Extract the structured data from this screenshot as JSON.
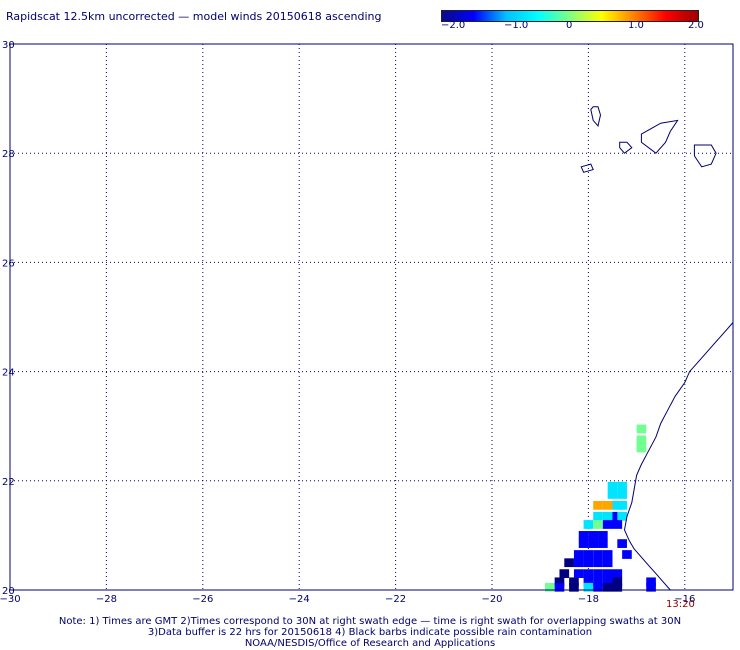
{
  "title": "Rapidscat 12.5km uncorrected — model winds 20150618 ascending",
  "colorbar": {
    "labels": [
      "−2.0",
      "−1.0",
      "0",
      "1.0",
      "2.0"
    ],
    "stops": [
      "#0a0a8c",
      "#0000ff",
      "#00c0ff",
      "#00ffff",
      "#80ff80",
      "#ffff00",
      "#ff8000",
      "#ff0000",
      "#a00000"
    ]
  },
  "axes": {
    "x_ticks": [
      "−30",
      "−28",
      "−26",
      "−24",
      "−22",
      "−20",
      "−18",
      "−16"
    ],
    "y_ticks": [
      "30",
      "28",
      "26",
      "24",
      "22",
      "20"
    ],
    "xlim": [
      -30,
      -15
    ],
    "ylim": [
      20,
      30
    ]
  },
  "timestamp": "13:20",
  "notes": [
    "Note: 1) Times are GMT 2)Times correspond to 30N at right swath edge — time is right swath for overlapping swaths at 30N",
    "3)Data buffer is 22 hrs for 20150618 4) Black barbs indicate possible rain contamination",
    "NOAA/NESDIS/Office of Research and Applications"
  ],
  "colors": {
    "frame": "#00006e",
    "coast": "#00006e",
    "grid": "#00006e",
    "dark_blue": "#000080",
    "blue": "#0000ff",
    "cyan": "#00e5ff",
    "green": "#70ff90",
    "orange": "#ffa500"
  },
  "cells": [
    {
      "lon": -16.9,
      "lat": 22.95,
      "c": "green"
    },
    {
      "lon": -16.9,
      "lat": 22.75,
      "c": "green"
    },
    {
      "lon": -16.9,
      "lat": 22.6,
      "c": "green"
    },
    {
      "lon": -17.5,
      "lat": 21.9,
      "c": "cyan"
    },
    {
      "lon": -17.3,
      "lat": 21.9,
      "c": "cyan"
    },
    {
      "lon": -17.5,
      "lat": 21.75,
      "c": "cyan"
    },
    {
      "lon": -17.3,
      "lat": 21.75,
      "c": "cyan"
    },
    {
      "lon": -17.8,
      "lat": 21.55,
      "c": "orange"
    },
    {
      "lon": -17.6,
      "lat": 21.55,
      "c": "orange"
    },
    {
      "lon": -17.4,
      "lat": 21.55,
      "c": "cyan"
    },
    {
      "lon": -17.3,
      "lat": 21.55,
      "c": "cyan"
    },
    {
      "lon": -17.8,
      "lat": 21.35,
      "c": "cyan"
    },
    {
      "lon": -17.6,
      "lat": 21.35,
      "c": "cyan"
    },
    {
      "lon": -17.4,
      "lat": 21.35,
      "c": "blue"
    },
    {
      "lon": -17.3,
      "lat": 21.35,
      "c": "cyan"
    },
    {
      "lon": -18.0,
      "lat": 21.2,
      "c": "cyan"
    },
    {
      "lon": -17.8,
      "lat": 21.2,
      "c": "green"
    },
    {
      "lon": -17.6,
      "lat": 21.2,
      "c": "blue"
    },
    {
      "lon": -17.4,
      "lat": 21.2,
      "c": "blue"
    },
    {
      "lon": -18.1,
      "lat": 21.0,
      "c": "blue"
    },
    {
      "lon": -17.9,
      "lat": 21.0,
      "c": "blue"
    },
    {
      "lon": -17.7,
      "lat": 21.0,
      "c": "blue"
    },
    {
      "lon": -18.1,
      "lat": 20.85,
      "c": "blue"
    },
    {
      "lon": -17.9,
      "lat": 20.85,
      "c": "blue"
    },
    {
      "lon": -17.7,
      "lat": 20.85,
      "c": "blue"
    },
    {
      "lon": -17.3,
      "lat": 20.85,
      "c": "blue"
    },
    {
      "lon": -18.2,
      "lat": 20.65,
      "c": "blue"
    },
    {
      "lon": -18.0,
      "lat": 20.65,
      "c": "blue"
    },
    {
      "lon": -17.8,
      "lat": 20.65,
      "c": "blue"
    },
    {
      "lon": -17.6,
      "lat": 20.65,
      "c": "blue"
    },
    {
      "lon": -17.2,
      "lat": 20.65,
      "c": "blue"
    },
    {
      "lon": -18.4,
      "lat": 20.5,
      "c": "dark_blue"
    },
    {
      "lon": -18.2,
      "lat": 20.5,
      "c": "blue"
    },
    {
      "lon": -18.0,
      "lat": 20.5,
      "c": "blue"
    },
    {
      "lon": -17.8,
      "lat": 20.5,
      "c": "blue"
    },
    {
      "lon": -17.6,
      "lat": 20.5,
      "c": "blue"
    },
    {
      "lon": -18.5,
      "lat": 20.3,
      "c": "dark_blue"
    },
    {
      "lon": -18.2,
      "lat": 20.3,
      "c": "blue"
    },
    {
      "lon": -18.0,
      "lat": 20.3,
      "c": "blue"
    },
    {
      "lon": -17.8,
      "lat": 20.3,
      "c": "blue"
    },
    {
      "lon": -17.6,
      "lat": 20.3,
      "c": "blue"
    },
    {
      "lon": -17.4,
      "lat": 20.3,
      "c": "blue"
    },
    {
      "lon": -18.6,
      "lat": 20.15,
      "c": "dark_blue"
    },
    {
      "lon": -18.3,
      "lat": 20.15,
      "c": "dark_blue"
    },
    {
      "lon": -18.0,
      "lat": 20.15,
      "c": "blue"
    },
    {
      "lon": -17.8,
      "lat": 20.15,
      "c": "blue"
    },
    {
      "lon": -17.6,
      "lat": 20.15,
      "c": "blue"
    },
    {
      "lon": -17.4,
      "lat": 20.15,
      "c": "dark_blue"
    },
    {
      "lon": -16.7,
      "lat": 20.15,
      "c": "blue"
    },
    {
      "lon": -18.8,
      "lat": 20.05,
      "c": "green"
    },
    {
      "lon": -18.6,
      "lat": 20.05,
      "c": "blue"
    },
    {
      "lon": -18.3,
      "lat": 20.05,
      "c": "dark_blue"
    },
    {
      "lon": -18.0,
      "lat": 20.05,
      "c": "cyan"
    },
    {
      "lon": -17.8,
      "lat": 20.05,
      "c": "blue"
    },
    {
      "lon": -17.6,
      "lat": 20.05,
      "c": "dark_blue"
    },
    {
      "lon": -17.4,
      "lat": 20.05,
      "c": "dark_blue"
    },
    {
      "lon": -16.7,
      "lat": 20.05,
      "c": "blue"
    }
  ],
  "coastline": [
    [
      -15.0,
      24.9
    ],
    [
      -15.2,
      24.7
    ],
    [
      -15.4,
      24.5
    ],
    [
      -15.7,
      24.2
    ],
    [
      -15.9,
      24.0
    ],
    [
      -16.0,
      23.8
    ],
    [
      -16.2,
      23.55
    ],
    [
      -16.35,
      23.3
    ],
    [
      -16.5,
      23.05
    ],
    [
      -16.6,
      22.8
    ],
    [
      -16.75,
      22.55
    ],
    [
      -16.9,
      22.3
    ],
    [
      -17.0,
      22.1
    ],
    [
      -17.05,
      21.85
    ],
    [
      -17.1,
      21.6
    ],
    [
      -17.2,
      21.35
    ],
    [
      -17.25,
      21.1
    ],
    [
      -17.15,
      20.9
    ],
    [
      -17.05,
      20.75
    ],
    [
      -16.9,
      20.6
    ],
    [
      -16.75,
      20.45
    ],
    [
      -16.6,
      20.3
    ],
    [
      -16.45,
      20.15
    ],
    [
      -16.3,
      20.0
    ]
  ],
  "islands": [
    [
      [
        -17.9,
        28.85
      ],
      [
        -17.8,
        28.85
      ],
      [
        -17.75,
        28.7
      ],
      [
        -17.8,
        28.5
      ],
      [
        -17.9,
        28.6
      ],
      [
        -17.95,
        28.8
      ]
    ],
    [
      [
        -17.35,
        28.2
      ],
      [
        -17.2,
        28.2
      ],
      [
        -17.1,
        28.1
      ],
      [
        -17.25,
        28.0
      ],
      [
        -17.35,
        28.1
      ]
    ],
    [
      [
        -18.15,
        27.75
      ],
      [
        -17.95,
        27.8
      ],
      [
        -17.9,
        27.7
      ],
      [
        -18.1,
        27.65
      ]
    ],
    [
      [
        -16.9,
        28.35
      ],
      [
        -16.5,
        28.55
      ],
      [
        -16.15,
        28.6
      ],
      [
        -16.3,
        28.4
      ],
      [
        -16.4,
        28.2
      ],
      [
        -16.6,
        28.0
      ],
      [
        -16.9,
        28.2
      ]
    ],
    [
      [
        -15.8,
        28.15
      ],
      [
        -15.45,
        28.15
      ],
      [
        -15.35,
        28.0
      ],
      [
        -15.45,
        27.8
      ],
      [
        -15.65,
        27.75
      ],
      [
        -15.8,
        27.95
      ]
    ]
  ]
}
